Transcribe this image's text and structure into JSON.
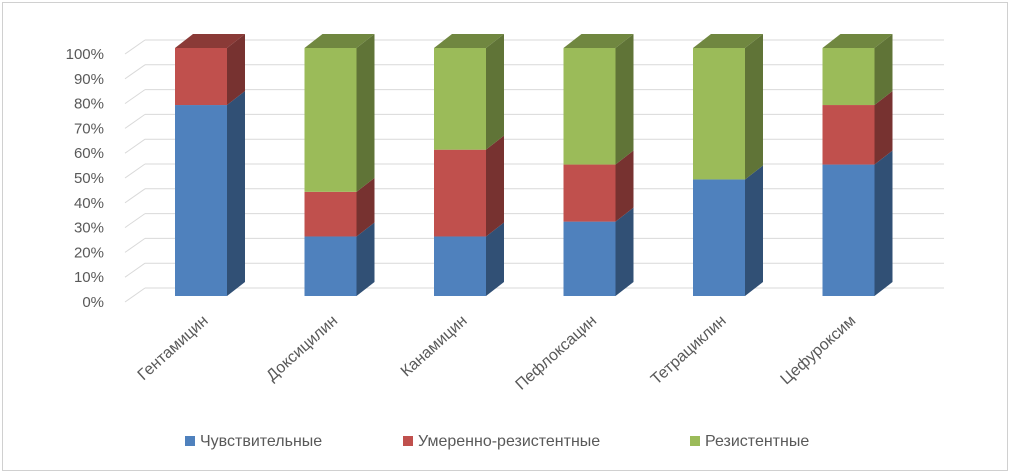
{
  "chart_data": {
    "type": "bar",
    "stacked": "100%",
    "three_d": true,
    "categories": [
      "Гентамицин",
      "Доксицилин",
      "Канамицин",
      "Пефлоксацин",
      "Тетрациклин",
      "Цефуроксим"
    ],
    "series": [
      {
        "name": "Чувствительные",
        "color": "#4f81bd",
        "values": [
          77,
          24,
          24,
          30,
          47,
          53
        ]
      },
      {
        "name": "Умеренно-резистентные",
        "color": "#c0504d",
        "values": [
          23,
          18,
          35,
          23,
          0,
          24
        ]
      },
      {
        "name": "Резистентные",
        "color": "#9bbb59",
        "values": [
          0,
          58,
          41,
          47,
          53,
          23
        ]
      }
    ],
    "y_ticks": [
      "0%",
      "10%",
      "20%",
      "30%",
      "40%",
      "50%",
      "60%",
      "70%",
      "80%",
      "90%",
      "100%"
    ],
    "ylim": [
      0,
      100
    ],
    "grid": true,
    "legend_position": "bottom"
  }
}
